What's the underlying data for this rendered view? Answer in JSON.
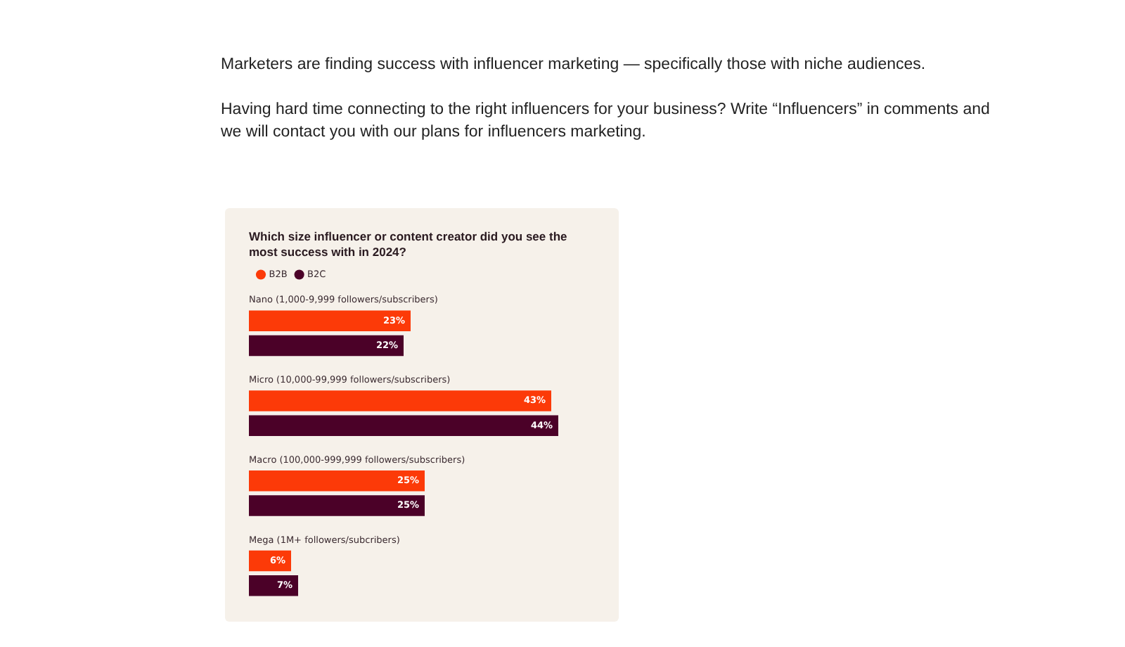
{
  "chart_data": {
    "type": "bar",
    "orientation": "horizontal",
    "title": "Which size influencer or content creator did you see the most success with in 2024?",
    "categories": [
      "Nano (1,000-9,999 followers/subscribers)",
      "Micro (10,000-99,999 followers/subscribers)",
      "Macro (100,000-999,999 followers/subscribers)",
      "Mega (1M+ followers/subcribers)"
    ],
    "series": [
      {
        "name": "B2B",
        "color": "#fc3a08",
        "values": [
          23,
          43,
          25,
          6
        ],
        "value_labels": [
          "23%",
          "43%",
          "25%",
          "6%"
        ]
      },
      {
        "name": "B2C",
        "color": "#4b0128",
        "values": [
          22,
          44,
          25,
          7
        ],
        "value_labels": [
          "22%",
          "44%",
          "25%",
          "7%"
        ]
      }
    ],
    "legend": "top left",
    "annotations": [
      "Marketers are finding success with influencer marketing — specifically those with niche audiences.",
      "Having hard time connecting to the right influencers for your business? Write “Influencers” in comments and we will contact you with our plans for influencers marketing."
    ]
  }
}
